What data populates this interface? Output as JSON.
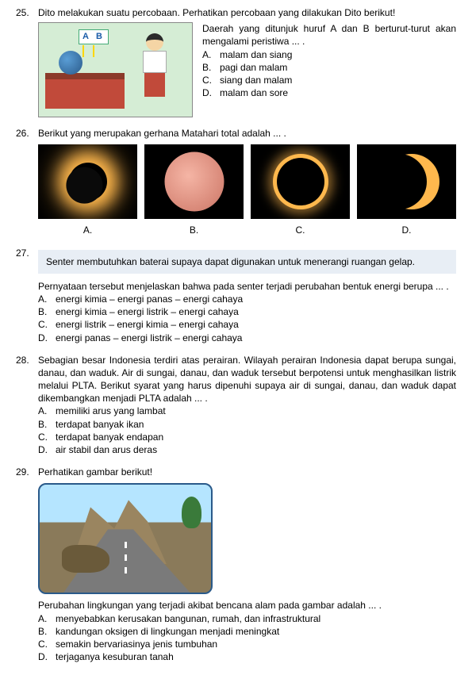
{
  "q25": {
    "number": "25.",
    "text": "Dito melakukan suatu percobaan. Perhatikan percobaan yang dilakukan Dito berikut!",
    "labelA": "A",
    "labelB": "B",
    "stem": "Daerah yang ditunjuk huruf A dan B berturut-turut akan mengalami peristiwa ... .",
    "choices": {
      "a": "malam dan siang",
      "b": "pagi dan malam",
      "c": "siang dan malam",
      "d": "malam dan sore"
    }
  },
  "q26": {
    "number": "26.",
    "text": "Berikut yang merupakan gerhana Matahari total adalah ... .",
    "labels": {
      "a": "A.",
      "b": "B.",
      "c": "C.",
      "d": "D."
    }
  },
  "q27": {
    "number": "27.",
    "box": "Senter membutuhkan baterai supaya dapat digunakan untuk menerangi ruangan gelap.",
    "stem": "Pernyataan tersebut menjelaskan bahwa pada senter terjadi perubahan bentuk energi berupa ... .",
    "choices": {
      "a": "energi kimia – energi panas – energi cahaya",
      "b": "energi kimia – energi listrik – energi cahaya",
      "c": "energi listrik – energi kimia – energi cahaya",
      "d": "energi panas – energi listrik – energi cahaya"
    }
  },
  "q28": {
    "number": "28.",
    "text": "Sebagian besar Indonesia terdiri atas perairan. Wilayah perairan Indonesia dapat berupa sungai, danau, dan waduk. Air di sungai, danau, dan waduk tersebut berpotensi untuk menghasilkan listrik melalui PLTA. Berikut syarat yang harus dipenuhi supaya air di sungai, danau, dan waduk dapat dikembangkan menjadi PLTA adalah ... .",
    "choices": {
      "a": "memiliki arus yang lambat",
      "b": "terdapat banyak ikan",
      "c": "terdapat banyak endapan",
      "d": "air stabil dan arus deras"
    }
  },
  "q29": {
    "number": "29.",
    "text": "Perhatikan gambar berikut!",
    "stem": "Perubahan lingkungan yang terjadi akibat bencana alam pada gambar adalah ... .",
    "choices": {
      "a": "menyebabkan kerusakan bangunan, rumah, dan infrastruktural",
      "b": "kandungan oksigen di lingkungan menjadi meningkat",
      "c": "semakin bervariasinya jenis tumbuhan",
      "d": "terjaganya kesuburan tanah"
    }
  },
  "letters": {
    "a": "A.",
    "b": "B.",
    "c": "C.",
    "d": "D."
  }
}
